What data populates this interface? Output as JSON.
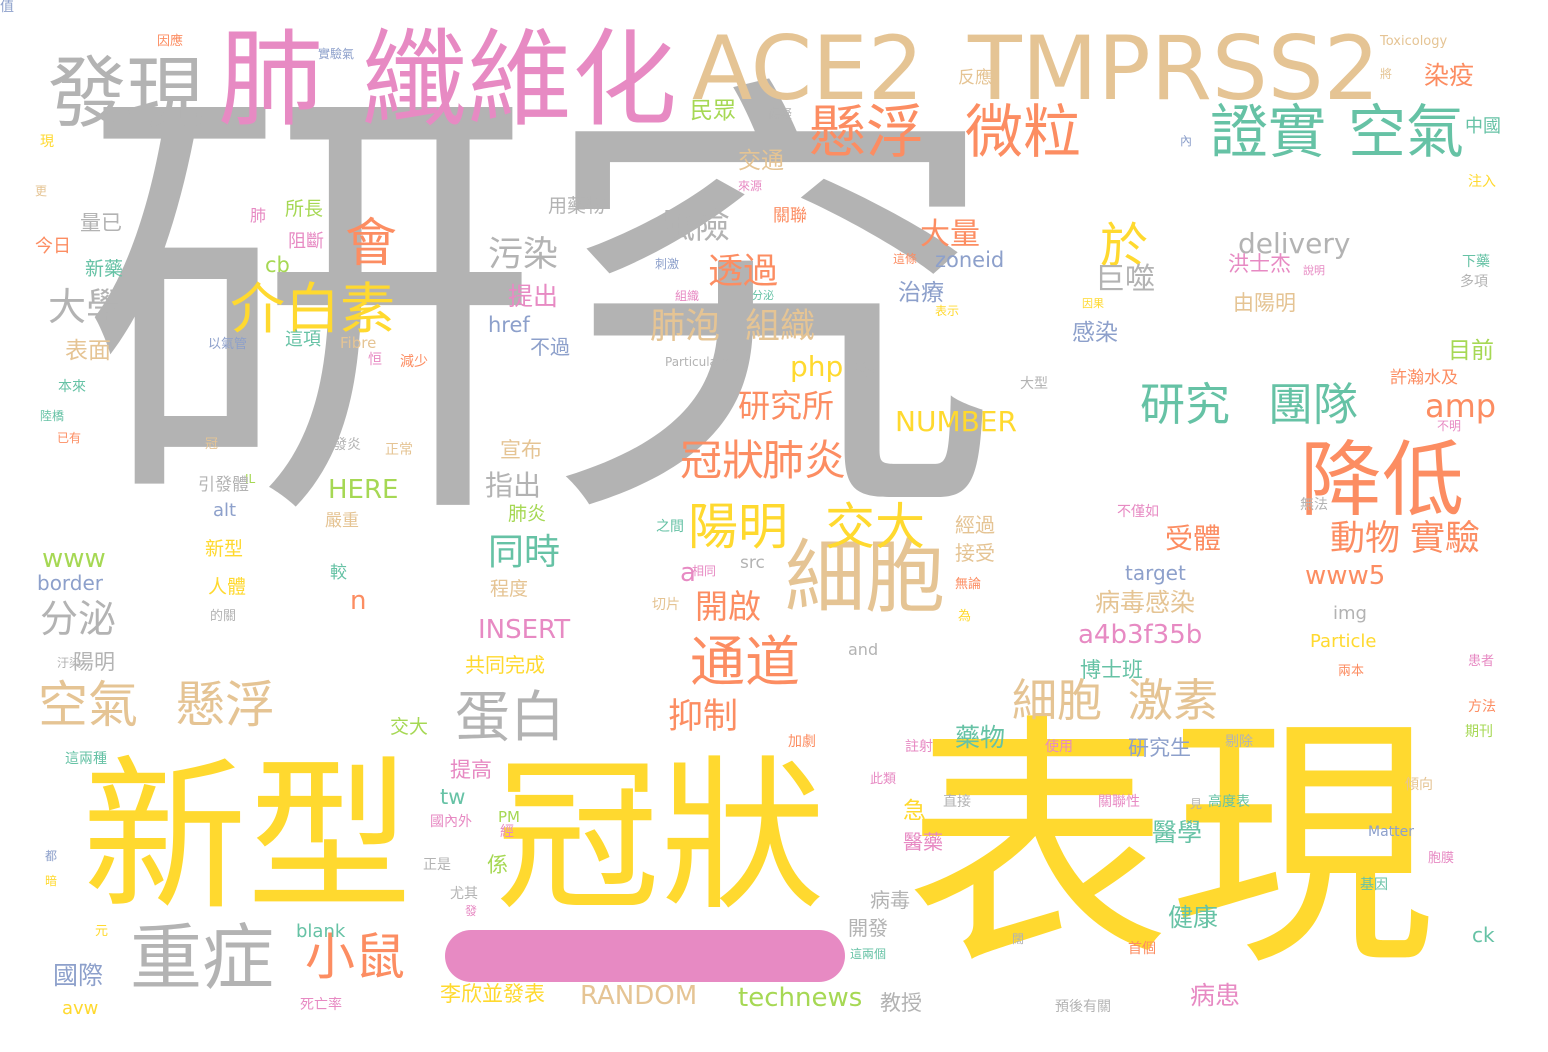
{
  "words": [
    {
      "text": "研究",
      "color": "#b3b3b3"
    },
    {
      "text": "表現",
      "color": "#ffd92f"
    },
    {
      "text": "新型",
      "color": "#ffd92f"
    },
    {
      "text": "冠狀",
      "color": "#ffd92f"
    },
    {
      "text": "纖維化",
      "color": "#e78ac3"
    },
    {
      "text": "肺",
      "color": "#e78ac3"
    },
    {
      "text": "發現",
      "color": "#b3b3b3"
    },
    {
      "text": "ACE2",
      "color": "#e5c494"
    },
    {
      "text": "TMPRSS2",
      "color": "#e5c494"
    },
    {
      "text": "懸浮",
      "color": "#fc8d62"
    },
    {
      "text": "微粒",
      "color": "#fc8d62"
    },
    {
      "text": "證實",
      "color": "#66c2a5"
    },
    {
      "text": "空氣",
      "color": "#66c2a5"
    },
    {
      "text": "降低",
      "color": "#fc8d62"
    },
    {
      "text": "細胞",
      "color": "#e5c494"
    },
    {
      "text": "重症",
      "color": "#b3b3b3"
    },
    {
      "text": "介白素",
      "color": "#ffd92f"
    },
    {
      "text": "空氣",
      "color": "#e5c494"
    },
    {
      "text": "懸浮",
      "color": "#e5c494"
    },
    {
      "text": "蛋白",
      "color": "#b3b3b3"
    },
    {
      "text": "陽明",
      "color": "#ffd92f"
    },
    {
      "text": "交大",
      "color": "#ffd92f"
    },
    {
      "text": "通道",
      "color": "#fc8d62"
    },
    {
      "text": "小鼠",
      "color": "#fc8d62"
    },
    {
      "text": "研究",
      "color": "#66c2a5"
    },
    {
      "text": "團隊",
      "color": "#66c2a5"
    },
    {
      "text": "細胞",
      "color": "#e5c494"
    },
    {
      "text": "激素",
      "color": "#e5c494"
    },
    {
      "text": "冠狀",
      "color": "#fc8d62"
    },
    {
      "text": "肺炎",
      "color": "#fc8d62"
    },
    {
      "text": "會",
      "color": "#fc8d62"
    },
    {
      "text": "於",
      "color": "#ffd92f"
    },
    {
      "text": "同時",
      "color": "#66c2a5"
    },
    {
      "text": "動物",
      "color": "#fc8d62"
    },
    {
      "text": "實驗",
      "color": "#fc8d62"
    },
    {
      "text": "抑制",
      "color": "#fc8d62"
    },
    {
      "text": "開啟",
      "color": "#fc8d62"
    },
    {
      "text": "透過",
      "color": "#fc8d62"
    },
    {
      "text": "風險",
      "color": "#b3b3b3"
    },
    {
      "text": "肺泡",
      "color": "#e5c494"
    },
    {
      "text": "組織",
      "color": "#e5c494"
    },
    {
      "text": "研究所",
      "color": "#fc8d62"
    },
    {
      "text": "污染",
      "color": "#b3b3b3"
    },
    {
      "text": "大學",
      "color": "#b3b3b3"
    },
    {
      "text": "分泌",
      "color": "#b3b3b3"
    },
    {
      "text": "大量",
      "color": "#fc8d62"
    },
    {
      "text": "巨噬",
      "color": "#b3b3b3"
    },
    {
      "text": "amp",
      "color": "#fc8d62"
    },
    {
      "text": "delivery",
      "color": "#b3b3b3"
    },
    {
      "text": "NUMBER",
      "color": "#ffd92f"
    },
    {
      "text": "RANDOM",
      "color": "#e5c494"
    },
    {
      "text": "technews",
      "color": "#a6d854"
    },
    {
      "text": "INSERT",
      "color": "#e78ac3"
    },
    {
      "text": "a4b3f35b",
      "color": "#e78ac3"
    },
    {
      "text": "www5",
      "color": "#fc8d62"
    },
    {
      "text": "HERE",
      "color": "#a6d854"
    },
    {
      "text": "www",
      "color": "#a6d854"
    },
    {
      "text": "php",
      "color": "#ffd92f"
    },
    {
      "text": "href",
      "color": "#8da0cb"
    },
    {
      "text": "zoneid",
      "color": "#8da0cb"
    },
    {
      "text": "target",
      "color": "#8da0cb"
    },
    {
      "text": "border",
      "color": "#8da0cb"
    },
    {
      "text": "alt",
      "color": "#8da0cb"
    },
    {
      "text": "cb",
      "color": "#a6d854"
    },
    {
      "text": "tw",
      "color": "#66c2a5"
    },
    {
      "text": "ck",
      "color": "#66c2a5"
    },
    {
      "text": "n",
      "color": "#fc8d62"
    },
    {
      "text": "a",
      "color": "#e78ac3"
    },
    {
      "text": "src",
      "color": "#b3b3b3"
    },
    {
      "text": "img",
      "color": "#b3b3b3"
    },
    {
      "text": "and",
      "color": "#b3b3b3"
    },
    {
      "text": "blank",
      "color": "#66c2a5"
    },
    {
      "text": "avw",
      "color": "#ffd92f"
    },
    {
      "text": "Particle",
      "color": "#ffd92f"
    },
    {
      "text": "Particulate",
      "color": "#b3b3b3"
    },
    {
      "text": "Matter",
      "color": "#8da0cb"
    },
    {
      "text": "Fibre",
      "color": "#e5c494"
    },
    {
      "text": "Toxicology",
      "color": "#e5c494"
    },
    {
      "text": "IL",
      "color": "#a6d854"
    },
    {
      "text": "PM",
      "color": "#a6d854"
    },
    {
      "text": "染疫",
      "color": "#fc8d62"
    },
    {
      "text": "民眾",
      "color": "#a6d854"
    },
    {
      "text": "交通",
      "color": "#e5c494"
    },
    {
      "text": "治療",
      "color": "#8da0cb"
    },
    {
      "text": "感染",
      "color": "#8da0cb"
    },
    {
      "text": "目前",
      "color": "#a6d854"
    },
    {
      "text": "許瀚水及",
      "color": "#fc8d62"
    },
    {
      "text": "提出",
      "color": "#e78ac3"
    },
    {
      "text": "不過",
      "color": "#8da0cb"
    },
    {
      "text": "後",
      "color": "#b3b3b3"
    },
    {
      "text": "指出",
      "color": "#b3b3b3"
    },
    {
      "text": "肺炎",
      "color": "#a6d854"
    },
    {
      "text": "宣布",
      "color": "#e5c494"
    },
    {
      "text": "受體",
      "color": "#fc8d62"
    },
    {
      "text": "病毒感染",
      "color": "#e5c494"
    },
    {
      "text": "博士班",
      "color": "#66c2a5"
    },
    {
      "text": "研究生",
      "color": "#8da0cb"
    },
    {
      "text": "醫學",
      "color": "#66c2a5"
    },
    {
      "text": "健康",
      "color": "#66c2a5"
    },
    {
      "text": "病患",
      "color": "#e78ac3"
    },
    {
      "text": "教授",
      "color": "#b3b3b3"
    },
    {
      "text": "李欣並發表",
      "color": "#ffd92f"
    },
    {
      "text": "國際",
      "color": "#8da0cb"
    },
    {
      "text": "藥物",
      "color": "#66c2a5"
    },
    {
      "text": "提高",
      "color": "#e78ac3"
    },
    {
      "text": "急",
      "color": "#ffd92f"
    },
    {
      "text": "醫藥",
      "color": "#e78ac3"
    },
    {
      "text": "係",
      "color": "#a6d854"
    },
    {
      "text": "病毒",
      "color": "#b3b3b3"
    },
    {
      "text": "開發",
      "color": "#b3b3b3"
    },
    {
      "text": "新藥",
      "color": "#66c2a5"
    },
    {
      "text": "今日",
      "color": "#fc8d62"
    },
    {
      "text": "表面",
      "color": "#e5c494"
    },
    {
      "text": "所長",
      "color": "#a6d854"
    },
    {
      "text": "阻斷",
      "color": "#e78ac3"
    },
    {
      "text": "這項",
      "color": "#66c2a5"
    },
    {
      "text": "陽明",
      "color": "#b3b3b3"
    },
    {
      "text": "新型",
      "color": "#ffd92f"
    },
    {
      "text": "人體",
      "color": "#ffd92f"
    },
    {
      "text": "嚴重",
      "color": "#e5c494"
    },
    {
      "text": "程度",
      "color": "#e5c494"
    },
    {
      "text": "共同完成",
      "color": "#ffd92f"
    },
    {
      "text": "量已",
      "color": "#b3b3b3"
    },
    {
      "text": "洪士杰",
      "color": "#e78ac3"
    },
    {
      "text": "由陽明",
      "color": "#e5c494"
    },
    {
      "text": "經過",
      "color": "#e5c494"
    },
    {
      "text": "接受",
      "color": "#e5c494"
    },
    {
      "text": "交大",
      "color": "#a6d854"
    },
    {
      "text": "反應",
      "color": "#e5c494"
    },
    {
      "text": "中國",
      "color": "#66c2a5"
    },
    {
      "text": "注入",
      "color": "#ffd92f"
    },
    {
      "text": "下藥",
      "color": "#66c2a5"
    },
    {
      "text": "多項",
      "color": "#b3b3b3"
    },
    {
      "text": "傾向",
      "color": "#e5c494"
    },
    {
      "text": "方法",
      "color": "#fc8d62"
    },
    {
      "text": "期刊",
      "color": "#a6d854"
    },
    {
      "text": "以氣管",
      "color": "#8da0cb"
    },
    {
      "text": "引發體",
      "color": "#b3b3b3"
    },
    {
      "text": "本來",
      "color": "#66c2a5"
    },
    {
      "text": "已有",
      "color": "#fc8d62"
    },
    {
      "text": "陸橋",
      "color": "#66c2a5"
    },
    {
      "text": "不僅如",
      "color": "#e78ac3"
    },
    {
      "text": "無法",
      "color": "#b3b3b3"
    },
    {
      "text": "不明",
      "color": "#e78ac3"
    },
    {
      "text": "發炎",
      "color": "#b3b3b3"
    },
    {
      "text": "正常",
      "color": "#e5c494"
    },
    {
      "text": "冠",
      "color": "#e5c494"
    },
    {
      "text": "用藥物",
      "color": "#b3b3b3"
    },
    {
      "text": "肺",
      "color": "#e78ac3"
    },
    {
      "text": "現",
      "color": "#ffd92f"
    },
    {
      "text": "更",
      "color": "#e5c494"
    },
    {
      "text": "因應",
      "color": "#fc8d62"
    },
    {
      "text": "實驗氣",
      "color": "#8da0cb"
    },
    {
      "text": "傷疑",
      "color": "#b3b3b3"
    },
    {
      "text": "來源",
      "color": "#e78ac3"
    },
    {
      "text": "關聯",
      "color": "#fc8d62"
    },
    {
      "text": "這條",
      "color": "#fc8d62"
    },
    {
      "text": "表示",
      "color": "#ffd92f"
    },
    {
      "text": "刺激",
      "color": "#8da0cb"
    },
    {
      "text": "組織",
      "color": "#e78ac3"
    },
    {
      "text": "分泌",
      "color": "#66c2a5"
    },
    {
      "text": "大型",
      "color": "#b3b3b3"
    },
    {
      "text": "因果",
      "color": "#ffd92f"
    },
    {
      "text": "相同",
      "color": "#e78ac3"
    },
    {
      "text": "切片",
      "color": "#e5c494"
    },
    {
      "text": "無論",
      "color": "#fc8d62"
    },
    {
      "text": "關聯性",
      "color": "#e78ac3"
    },
    {
      "text": "高度表",
      "color": "#66c2a5"
    },
    {
      "text": "剔除",
      "color": "#b3b3b3"
    },
    {
      "text": "直接",
      "color": "#b3b3b3"
    },
    {
      "text": "註射",
      "color": "#e78ac3"
    },
    {
      "text": "加劇",
      "color": "#fc8d62"
    },
    {
      "text": "使用",
      "color": "#e78ac3"
    },
    {
      "text": "此類",
      "color": "#e78ac3"
    },
    {
      "text": "正是",
      "color": "#b3b3b3"
    },
    {
      "text": "尤其",
      "color": "#b3b3b3"
    },
    {
      "text": "國內外",
      "color": "#e78ac3"
    },
    {
      "text": "這兩種",
      "color": "#66c2a5"
    },
    {
      "text": "汙染",
      "color": "#b3b3b3"
    },
    {
      "text": "都",
      "color": "#8da0cb"
    },
    {
      "text": "首個",
      "color": "#fc8d62"
    },
    {
      "text": "這兩個",
      "color": "#66c2a5"
    },
    {
      "text": "死亡率",
      "color": "#e78ac3"
    },
    {
      "text": "預後有關",
      "color": "#b3b3b3"
    },
    {
      "text": "基因",
      "color": "#66c2a5"
    },
    {
      "text": "胞膜",
      "color": "#e78ac3"
    },
    {
      "text": "患者",
      "color": "#e78ac3"
    },
    {
      "text": "兩本",
      "color": "#fc8d62"
    },
    {
      "text": "之間",
      "color": "#66c2a5"
    },
    {
      "text": "元",
      "color": "#ffd92f"
    },
    {
      "text": "較",
      "color": "#66c2a5"
    },
    {
      "text": "恒",
      "color": "#e78ac3"
    },
    {
      "text": "減少",
      "color": "#fc8d62"
    },
    {
      "text": "內",
      "color": "#8da0cb"
    },
    {
      "text": "將",
      "color": "#e5c494"
    },
    {
      "text": "說明",
      "color": "#e78ac3"
    },
    {
      "text": "闊",
      "color": "#b3b3b3"
    },
    {
      "text": "的關",
      "color": "#b3b3b3"
    },
    {
      "text": "為",
      "color": "#ffd92f"
    },
    {
      "text": "經",
      "color": "#e78ac3"
    },
    {
      "text": "見",
      "color": "#b3b3b3"
    },
    {
      "text": "發",
      "color": "#e78ac3"
    },
    {
      "text": "暗",
      "color": "#ffd92f"
    },
    {
      "text": "值",
      "color": "#8da0cb"
    }
  ],
  "decoration": {
    "pink_bar_color": "#e78ac3"
  }
}
